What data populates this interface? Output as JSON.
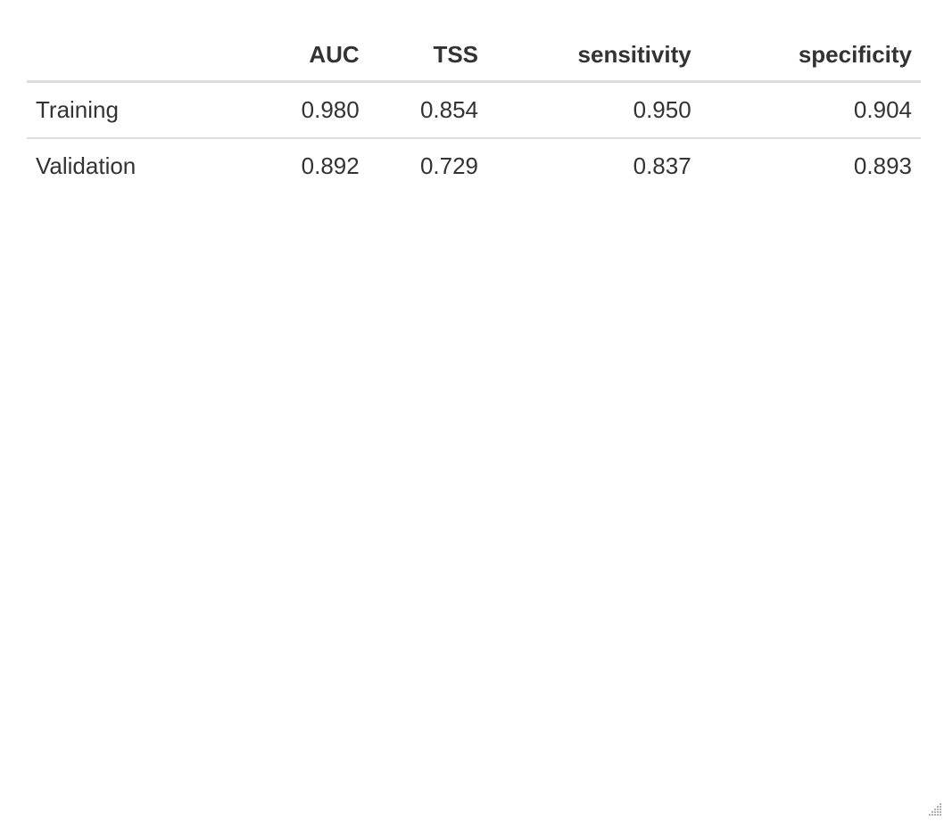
{
  "table": {
    "headers": [
      "",
      "AUC",
      "TSS",
      "sensitivity",
      "specificity"
    ],
    "rows": [
      {
        "label": "Training",
        "auc": "0.980",
        "tss": "0.854",
        "sensitivity": "0.950",
        "specificity": "0.904"
      },
      {
        "label": "Validation",
        "auc": "0.892",
        "tss": "0.729",
        "sensitivity": "0.837",
        "specificity": "0.893"
      }
    ]
  },
  "icons": {
    "resize": "resize-grip-icon"
  }
}
